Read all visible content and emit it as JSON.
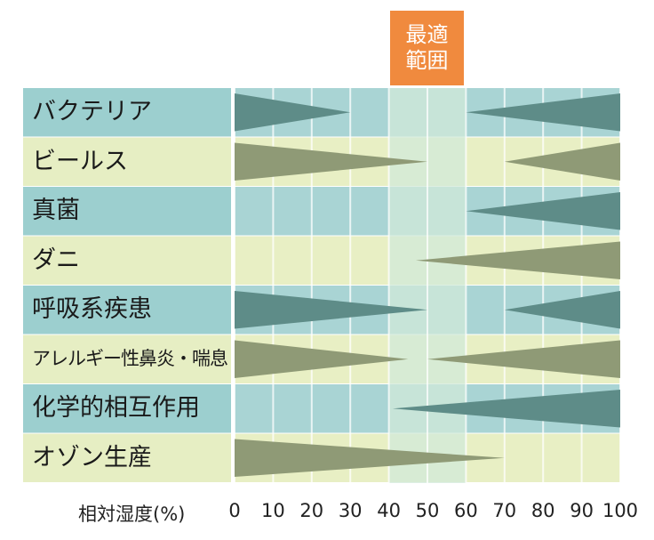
{
  "optimal_label": {
    "line1": "最適",
    "line2": "範囲"
  },
  "colors": {
    "row_band_dark": "#a9d4d4",
    "row_band_light": "#e8efc4",
    "label_dark": "#9ccfcf",
    "label_light": "#e6eec3",
    "optimal_band": "#d2ead9",
    "triangle_teal": "#5e8c88",
    "triangle_olive": "#8f9a76",
    "optimal_box": "#f08a3e"
  },
  "chart_data": {
    "type": "bar",
    "description_axis": "相対湿度(%)",
    "xlabel": "相対湿度(%)",
    "x_ticks": [
      "0",
      "10",
      "20",
      "30",
      "40",
      "50",
      "60",
      "70",
      "80",
      "90",
      "100"
    ],
    "xlim": [
      0,
      100
    ],
    "optimal_range": [
      40,
      60
    ],
    "rows": [
      {
        "label": "バクテリア",
        "left": [
          0,
          30
        ],
        "right": [
          60,
          100
        ],
        "shade": "teal"
      },
      {
        "label": "ビールス",
        "left": [
          0,
          50
        ],
        "right": [
          70,
          100
        ],
        "shade": "olive"
      },
      {
        "label": "真菌",
        "left": null,
        "right": [
          60,
          100
        ],
        "shade": "teal"
      },
      {
        "label": "ダニ",
        "left": null,
        "right": [
          47,
          100
        ],
        "shade": "olive"
      },
      {
        "label": "呼吸系疾患",
        "left": [
          0,
          50
        ],
        "right": [
          70,
          100
        ],
        "shade": "teal"
      },
      {
        "label": "アレルギー性鼻炎・喘息",
        "left": [
          0,
          45
        ],
        "right": [
          50,
          100
        ],
        "shade": "olive"
      },
      {
        "label": "化学的相互作用",
        "left": null,
        "right": [
          41,
          100
        ],
        "shade": "teal"
      },
      {
        "label": "オゾン生産",
        "left": [
          0,
          70
        ],
        "right": null,
        "shade": "olive"
      }
    ]
  }
}
